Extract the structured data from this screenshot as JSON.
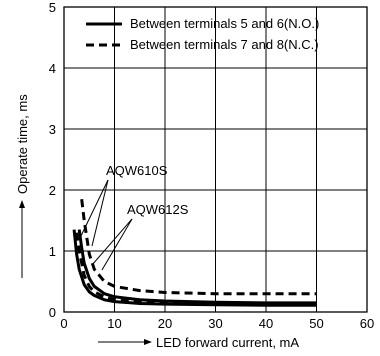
{
  "chart_data": {
    "type": "line",
    "xlabel": "LED forward current, mA",
    "ylabel": "Operate time, ms",
    "xlim": [
      0,
      60
    ],
    "ylim": [
      0,
      5
    ],
    "x_ticks": [
      "0",
      "10",
      "20",
      "30",
      "40",
      "50",
      "60"
    ],
    "y_ticks": [
      "0",
      "1",
      "2",
      "3",
      "4",
      "5"
    ],
    "grid": true,
    "legend_position": "top-right",
    "legend": [
      {
        "label": "Between terminals 5 and 6(N.O.)",
        "style": "solid"
      },
      {
        "label": "Between terminals 7 and 8(N.C.)",
        "style": "dashed"
      }
    ],
    "annotations": [
      "AQW610S",
      "AQW612S"
    ],
    "series": [
      {
        "name": "Between terminals 5 and 6(N.O.)",
        "device": "AQW610S",
        "style": "solid",
        "x": [
          2,
          2.5,
          3,
          4,
          5,
          6,
          8,
          10,
          15,
          20,
          30,
          40,
          50
        ],
        "y": [
          1.35,
          0.95,
          0.7,
          0.45,
          0.33,
          0.27,
          0.2,
          0.17,
          0.14,
          0.13,
          0.12,
          0.11,
          0.11
        ]
      },
      {
        "name": "Between terminals 5 and 6(N.O.)",
        "device": "AQW612S",
        "style": "solid",
        "x": [
          3,
          3.5,
          4,
          5,
          6,
          8,
          10,
          15,
          20,
          30,
          40,
          50
        ],
        "y": [
          1.35,
          1.05,
          0.8,
          0.55,
          0.42,
          0.3,
          0.25,
          0.2,
          0.18,
          0.16,
          0.15,
          0.15
        ]
      },
      {
        "name": "Between terminals 7 and 8(N.C.)",
        "device": "AQW610S",
        "style": "dashed",
        "x": [
          2.5,
          3,
          4,
          5,
          6,
          8,
          10,
          15,
          20,
          30,
          40,
          50
        ],
        "y": [
          1.3,
          1.0,
          0.6,
          0.42,
          0.33,
          0.25,
          0.2,
          0.17,
          0.15,
          0.14,
          0.14,
          0.14
        ]
      },
      {
        "name": "Between terminals 7 and 8(N.C.)",
        "device": "AQW612S",
        "style": "dashed",
        "x": [
          3.5,
          4,
          5,
          6,
          8,
          10,
          15,
          20,
          30,
          40,
          50
        ],
        "y": [
          1.85,
          1.5,
          0.95,
          0.7,
          0.5,
          0.42,
          0.35,
          0.32,
          0.3,
          0.3,
          0.3
        ]
      }
    ]
  }
}
